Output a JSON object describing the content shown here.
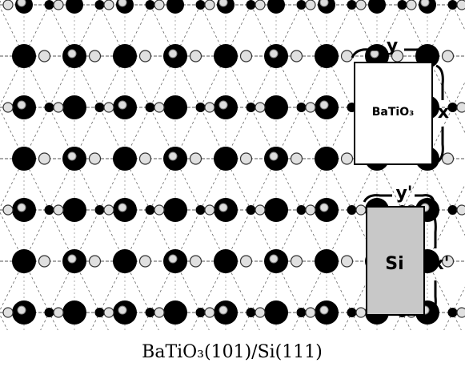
{
  "labels": {
    "y": "y",
    "x": "x",
    "y_prime": "y'",
    "x_prime": "x'",
    "batio3": "BaTiO₃",
    "si": "Si"
  },
  "caption": "BaTiO₃(101)/Si(111)"
}
